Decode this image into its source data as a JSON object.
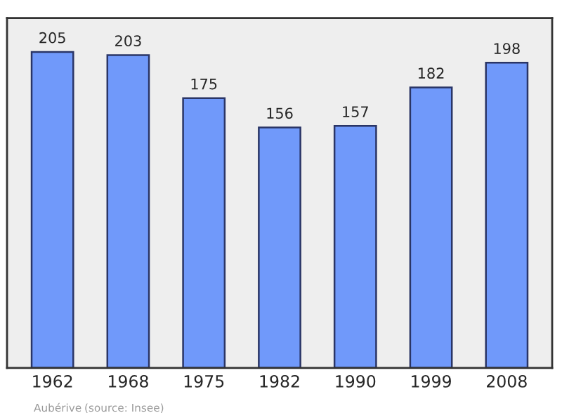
{
  "chart_data": {
    "type": "bar",
    "categories": [
      "1962",
      "1968",
      "1975",
      "1982",
      "1990",
      "1999",
      "2008"
    ],
    "values": [
      205,
      203,
      175,
      156,
      157,
      182,
      198
    ],
    "color": "#7099fa",
    "data_labels": true,
    "ylim": [
      0,
      227
    ],
    "tick_labels": "x",
    "grid": false,
    "annotations": [
      "Aubérive",
      "(source: Insee)"
    ]
  }
}
